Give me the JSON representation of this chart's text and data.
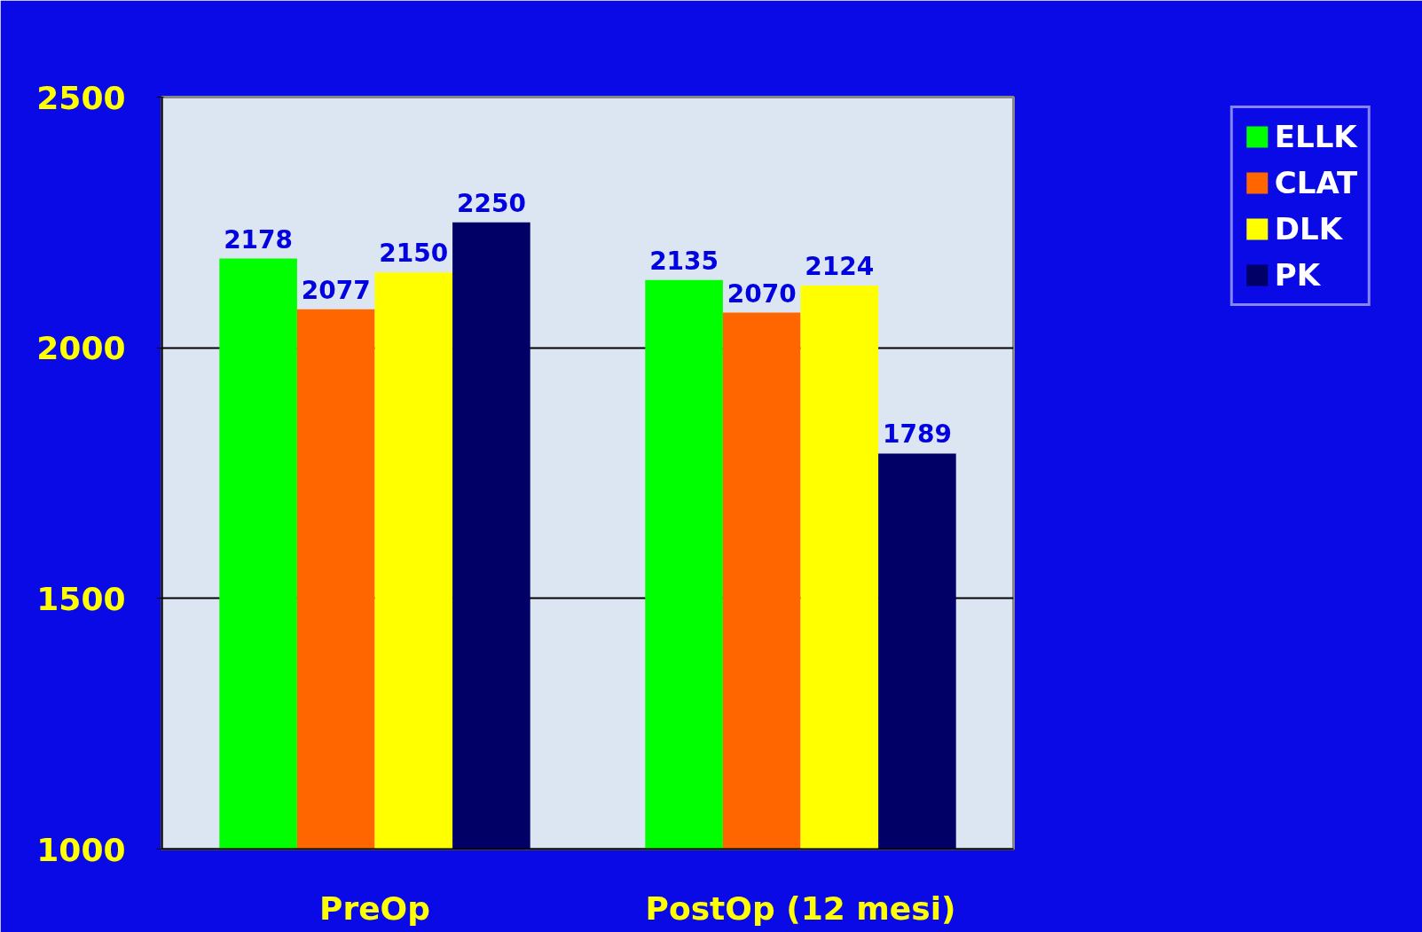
{
  "chart_data": {
    "type": "bar",
    "categories": [
      "PreOp",
      "PostOp (12 mesi)"
    ],
    "series": [
      {
        "name": "ELLK",
        "color": "#00ff00",
        "values": [
          2178,
          2135
        ]
      },
      {
        "name": "CLAT",
        "color": "#ff6600",
        "values": [
          2077,
          2070
        ]
      },
      {
        "name": "DLK",
        "color": "#ffff00",
        "values": [
          2150,
          2124
        ]
      },
      {
        "name": "PK",
        "color": "#000066",
        "values": [
          2250,
          1789
        ]
      }
    ],
    "ylim": [
      1000,
      2500
    ],
    "yticks": [
      1000,
      1500,
      2000,
      2500
    ],
    "grid": "y",
    "legend": "top right",
    "data_labels": true
  }
}
